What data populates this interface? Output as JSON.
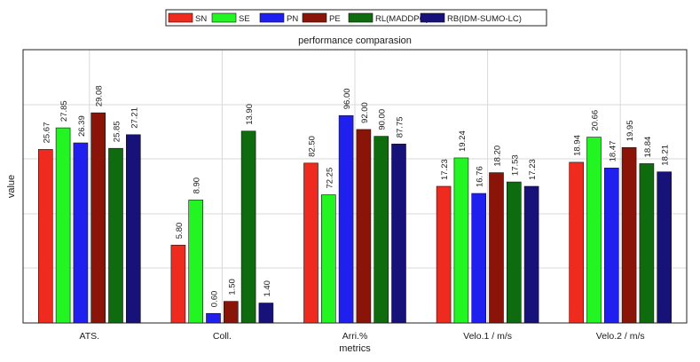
{
  "chart_data": {
    "type": "bar",
    "title": "performance comparasion",
    "xlabel": "metrics",
    "ylabel": "value",
    "categories": [
      "ATS.",
      "Coll.",
      "Arri.%",
      "Velo.1 / m/s",
      "Velo.2 / m/s"
    ],
    "series": [
      {
        "name": "SN",
        "color": "#ef2b1f",
        "values": [
          25.67,
          5.8,
          82.5,
          17.23,
          18.94
        ],
        "labels": [
          "25.67",
          "5.80",
          "82.50",
          "17.23",
          "18.94"
        ],
        "levels": [
          0.635,
          0.285,
          0.585,
          0.5,
          0.588
        ]
      },
      {
        "name": "SE",
        "color": "#22f522",
        "values": [
          27.85,
          8.9,
          72.25,
          19.24,
          20.66
        ],
        "labels": [
          "27.85",
          "8.90",
          "72.25",
          "19.24",
          "20.66"
        ],
        "levels": [
          0.714,
          0.45,
          0.469,
          0.604,
          0.68
        ]
      },
      {
        "name": "PN",
        "color": "#1f1fef",
        "values": [
          26.39,
          0.6,
          96.0,
          16.76,
          18.47
        ],
        "labels": [
          "26.39",
          "0.60",
          "96.00",
          "16.76",
          "18.47"
        ],
        "levels": [
          0.659,
          0.035,
          0.759,
          0.474,
          0.567
        ]
      },
      {
        "name": "PE",
        "color": "#8b1408",
        "values": [
          29.08,
          1.5,
          92.0,
          18.2,
          19.95
        ],
        "labels": [
          "29.08",
          "1.50",
          "92.00",
          "18.20",
          "19.95"
        ],
        "levels": [
          0.769,
          0.079,
          0.708,
          0.55,
          0.642
        ]
      },
      {
        "name": "RL(MADDPG)",
        "color": "#0e6b0e",
        "values": [
          25.85,
          13.9,
          90.0,
          17.53,
          18.84
        ],
        "labels": [
          "25.85",
          "13.90",
          "90.00",
          "17.53",
          "18.84"
        ],
        "levels": [
          0.639,
          0.702,
          0.683,
          0.516,
          0.583
        ]
      },
      {
        "name": "RB(IDM-SUMO-LC)",
        "color": "#17117a",
        "values": [
          27.21,
          1.4,
          87.75,
          17.23,
          18.21
        ],
        "labels": [
          "27.21",
          "1.40",
          "87.75",
          "17.23",
          "18.21"
        ],
        "levels": [
          0.689,
          0.073,
          0.655,
          0.5,
          0.553
        ]
      }
    ],
    "y_tick_labels": [],
    "grid": true,
    "legend_position": "top-center"
  }
}
